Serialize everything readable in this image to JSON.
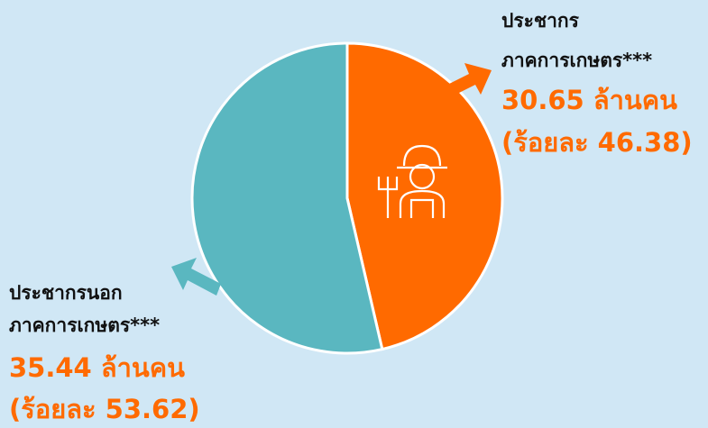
{
  "chart_data": {
    "type": "pie",
    "categories": [
      [
        "ประชากร",
        "ภาคการเกษตร***"
      ],
      [
        "ประชากรนอก",
        "ภาคการเกษตร***"
      ]
    ],
    "values": [
      46.38,
      53.62
    ],
    "value_labels": [
      "(ร้อยละ 46.38)",
      "(ร้อยละ 53.62)"
    ],
    "population": [
      30.65,
      35.44
    ],
    "population_labels": [
      "30.65 ล้านคน",
      "35.44 ล้านคน"
    ],
    "colors": [
      "#ff6a00",
      "#5ab7c0"
    ]
  }
}
